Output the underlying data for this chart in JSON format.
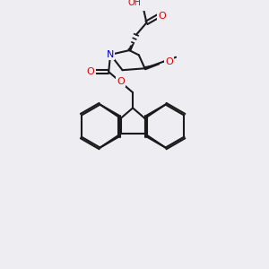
{
  "bg_color": "#eeeef2",
  "bond_color": "#1a1a1a",
  "bond_width": 1.5,
  "atom_colors": {
    "O": "#e00000",
    "N": "#0000cc",
    "C": "#1a1a1a",
    "H": "#808080"
  },
  "font_size": 8
}
